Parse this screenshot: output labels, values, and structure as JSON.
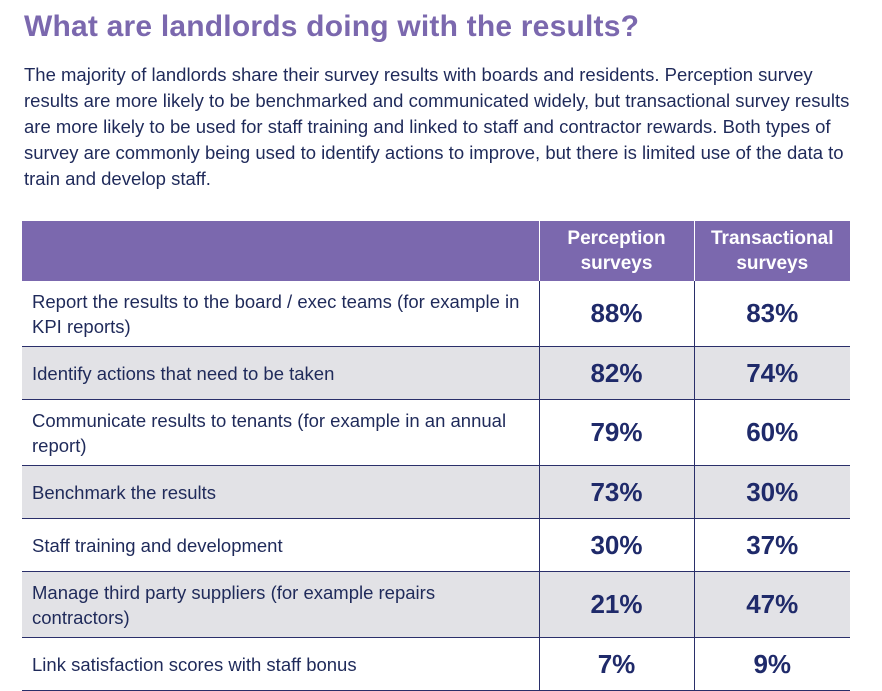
{
  "heading": "What are landlords doing with the results?",
  "intro": "The majority of landlords share their survey results with boards and residents. Perception survey results are more likely to be benchmarked and communicated widely, but transactional survey results are more likely to be used for staff training and linked to staff and contractor rewards. Both types of survey are commonly being used to identify actions to improve, but there is limited use of the data to train and develop staff.",
  "table": {
    "columns": {
      "action": "",
      "perception": "Perception surveys",
      "transactional": "Transactional surveys"
    },
    "rows": [
      {
        "action": "Report the results to the board / exec teams (for example in KPI reports)",
        "perception": "88%",
        "transactional": "83%"
      },
      {
        "action": "Identify actions that need to be taken",
        "perception": "82%",
        "transactional": "74%"
      },
      {
        "action": "Communicate results to tenants (for example in an annual report)",
        "perception": "79%",
        "transactional": "60%"
      },
      {
        "action": "Benchmark the results",
        "perception": "73%",
        "transactional": "30%"
      },
      {
        "action": "Staff training and development",
        "perception": "30%",
        "transactional": "37%"
      },
      {
        "action": "Manage third party suppliers (for example repairs contractors)",
        "perception": "21%",
        "transactional": "47%"
      },
      {
        "action": "Link satisfaction scores with staff bonus",
        "perception": "7%",
        "transactional": "9%"
      }
    ]
  },
  "colors": {
    "accent_purple": "#7b68ae",
    "text_navy": "#1f2a5a",
    "row_shade": "#e2e2e6"
  }
}
